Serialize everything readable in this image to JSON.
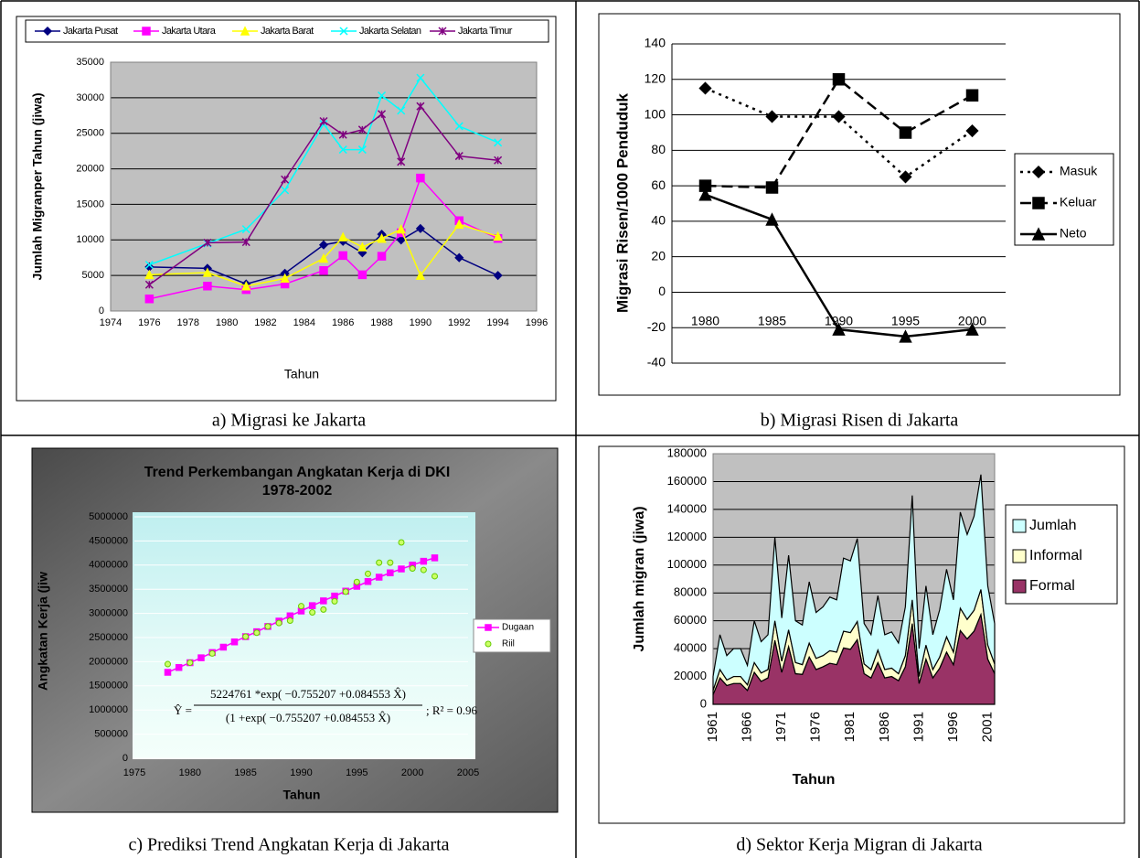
{
  "chart_data": [
    {
      "type": "line",
      "caption": "a) Migrasi ke Jakarta",
      "xlabel": "Tahun",
      "ylabel": "Jumlah Migranper Tahun (jiwa)",
      "x": [
        1976,
        1979,
        1981,
        1983,
        1985,
        1986,
        1987,
        1988,
        1989,
        1990,
        1992,
        1994
      ],
      "xlim": [
        1974,
        1996
      ],
      "xticks": [
        1974,
        1976,
        1978,
        1980,
        1982,
        1984,
        1986,
        1988,
        1990,
        1992,
        1994,
        1996
      ],
      "ylim": [
        0,
        35000
      ],
      "yticks": [
        0,
        5000,
        10000,
        15000,
        20000,
        25000,
        30000,
        35000
      ],
      "grid": true,
      "legend": "top",
      "plot_color": "#c0c0c0",
      "series": [
        {
          "name": "Jakarta Pusat",
          "color": "#000080",
          "marker": "diamond",
          "values": [
            6200,
            6000,
            3800,
            5300,
            9300,
            9800,
            8200,
            10800,
            10000,
            11600,
            7500,
            5000
          ]
        },
        {
          "name": "Jakarta Utara",
          "color": "#ff00ff",
          "marker": "square",
          "values": [
            1700,
            3500,
            3000,
            3800,
            5700,
            7800,
            5100,
            7700,
            11000,
            18700,
            12700,
            10200
          ]
        },
        {
          "name": "Jakarta Barat",
          "color": "#ffff00",
          "marker": "triangle",
          "values": [
            5100,
            5400,
            3500,
            4600,
            7400,
            10400,
            9000,
            10200,
            11500,
            5000,
            12200,
            10500
          ]
        },
        {
          "name": "Jakarta Selatan",
          "color": "#00ffff",
          "marker": "x",
          "values": [
            6500,
            9500,
            11500,
            17000,
            26300,
            22700,
            22700,
            30300,
            28200,
            32800,
            26000,
            23700
          ]
        },
        {
          "name": "Jakarta Timur",
          "color": "#800080",
          "marker": "asterisk",
          "values": [
            3700,
            9600,
            9700,
            18500,
            26700,
            24800,
            25500,
            27700,
            21000,
            28800,
            21800,
            21200
          ]
        }
      ]
    },
    {
      "type": "line",
      "caption": "b) Migrasi Risen di Jakarta",
      "ylabel": "Migrasi Risen/1000 Penduduk",
      "categories": [
        "1980",
        "1985",
        "1990",
        "1995",
        "2000"
      ],
      "ylim": [
        -40,
        140
      ],
      "yticks": [
        -40,
        -20,
        0,
        20,
        40,
        60,
        80,
        100,
        120,
        140
      ],
      "grid": true,
      "legend": "right",
      "series": [
        {
          "name": "Masuk",
          "color": "#000000",
          "marker": "diamond",
          "dash": "dotted",
          "values": [
            115,
            99,
            99,
            65,
            91
          ]
        },
        {
          "name": "Keluar",
          "color": "#000000",
          "marker": "square",
          "dash": "dashed",
          "values": [
            60,
            59,
            120,
            90,
            111
          ]
        },
        {
          "name": "Neto",
          "color": "#000000",
          "marker": "triangle",
          "dash": "solid",
          "values": [
            55,
            41,
            -21,
            -25,
            -21
          ]
        }
      ]
    },
    {
      "type": "line",
      "caption": "c) Prediksi Trend Angkatan Kerja di Jakarta",
      "title": [
        "Trend Perkembangan Angkatan Kerja di DKI",
        "1978-2002"
      ],
      "xlabel": "Tahun",
      "ylabel": "Angkatan Kerja (jiw",
      "xlim": [
        1975,
        2005
      ],
      "xticks": [
        1975,
        1980,
        1985,
        1990,
        1995,
        2000,
        2005
      ],
      "ylim": [
        0,
        5000000
      ],
      "yticks": [
        0,
        500000,
        1000000,
        1500000,
        2000000,
        2500000,
        3000000,
        3500000,
        4000000,
        4500000,
        5000000
      ],
      "grid": true,
      "legend": "lower right",
      "annotations": [
        "Ŷ =",
        "5224761 *exp( −0.755207 +0.084553 X̂)",
        "(1 +exp( −0.755207 +0.084553 X̂)",
        "; R² = 0.96"
      ],
      "series": [
        {
          "name": "Dugaan",
          "color": "#ff00ff",
          "marker": "square",
          "mode": "lines+markers",
          "x": [
            1978,
            1979,
            1980,
            1981,
            1982,
            1983,
            1984,
            1985,
            1986,
            1987,
            1988,
            1989,
            1990,
            1991,
            1992,
            1993,
            1994,
            1995,
            1996,
            1997,
            1998,
            1999,
            2000,
            2001,
            2002
          ],
          "values": [
            1780000,
            1880000,
            1980000,
            2080000,
            2190000,
            2300000,
            2410000,
            2520000,
            2620000,
            2730000,
            2840000,
            2950000,
            3050000,
            3160000,
            3260000,
            3360000,
            3460000,
            3560000,
            3660000,
            3750000,
            3840000,
            3920000,
            4000000,
            4080000,
            4150000
          ]
        },
        {
          "name": "Riil",
          "color": "#66cc00",
          "marker": "circle",
          "mode": "markers",
          "x": [
            1978,
            1980,
            1982,
            1985,
            1986,
            1987,
            1988,
            1989,
            1990,
            1991,
            1992,
            1993,
            1994,
            1995,
            1996,
            1997,
            1998,
            1999,
            2000,
            2001,
            2002
          ],
          "values": [
            1950000,
            1980000,
            2170000,
            2520000,
            2600000,
            2730000,
            2800000,
            2850000,
            3150000,
            3020000,
            3080000,
            3250000,
            3450000,
            3650000,
            3820000,
            4050000,
            4050000,
            4470000,
            3930000,
            3900000,
            3770000
          ]
        }
      ]
    },
    {
      "type": "area",
      "stacked": true,
      "caption": "d) Sektor Kerja Migran di Jakarta",
      "xlabel": "Tahun",
      "ylabel": "Jumlah migran (jiwa)",
      "categories": [
        "1961",
        null,
        null,
        null,
        null,
        "1966",
        null,
        null,
        null,
        null,
        "1971",
        null,
        null,
        null,
        null,
        "1976",
        null,
        null,
        null,
        null,
        "1981",
        null,
        null,
        null,
        null,
        "1986",
        null,
        null,
        null,
        null,
        "1991",
        null,
        null,
        null,
        null,
        "1996",
        null,
        null,
        null,
        null,
        "2001",
        null
      ],
      "ylim": [
        0,
        180000
      ],
      "yticks": [
        0,
        20000,
        40000,
        60000,
        80000,
        100000,
        120000,
        140000,
        160000,
        180000
      ],
      "grid": true,
      "legend": "right",
      "plot_color": "#c0c0c0",
      "series": [
        {
          "name": "Formal",
          "color": "#993366",
          "values": [
            7000,
            19000,
            13500,
            15000,
            15000,
            10000,
            23000,
            16500,
            19000,
            46000,
            23000,
            41500,
            22000,
            21500,
            34000,
            25000,
            27000,
            29500,
            28500,
            40500,
            39500,
            46500,
            22000,
            19000,
            30000,
            19000,
            20000,
            17000,
            27000,
            58000,
            15000,
            32500,
            19000,
            26000,
            37500,
            28500,
            53000,
            47000,
            52500,
            64500,
            32500,
            22000
          ]
        },
        {
          "name": "Informal",
          "color": "#ffffcc",
          "values": [
            3000,
            6000,
            4000,
            5000,
            5000,
            4000,
            7000,
            6000,
            6000,
            14000,
            8000,
            12000,
            8000,
            7000,
            10000,
            8000,
            8000,
            9000,
            9000,
            12000,
            12000,
            13000,
            7000,
            6000,
            9000,
            6000,
            6000,
            5000,
            8000,
            17000,
            5000,
            10000,
            6000,
            8000,
            11000,
            9000,
            16000,
            14000,
            15000,
            18000,
            10000,
            7000
          ]
        },
        {
          "name": "Jumlah",
          "color": "#ccffff",
          "values": [
            10000,
            25000,
            17500,
            20000,
            20000,
            14000,
            30000,
            22500,
            25000,
            60000,
            31000,
            53500,
            30000,
            28500,
            44000,
            33000,
            35000,
            38500,
            37500,
            52500,
            51500,
            59500,
            29000,
            25000,
            39000,
            25000,
            26000,
            22000,
            35000,
            75000,
            20000,
            42500,
            25000,
            34000,
            48500,
            37500,
            69000,
            61000,
            67500,
            82500,
            42500,
            29000
          ]
        }
      ]
    }
  ]
}
